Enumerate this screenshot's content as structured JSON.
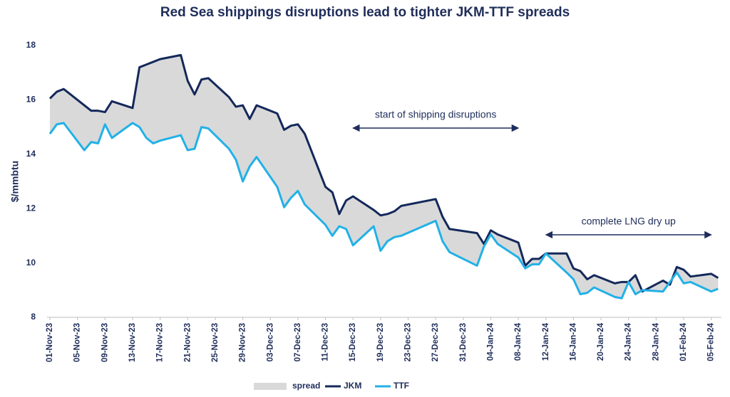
{
  "chart_data": {
    "type": "line",
    "title": "Red Sea shippings disruptions lead to tighter JKM-TTF spreads",
    "y_label": "$/mmbtu",
    "ylim": [
      8,
      18
    ],
    "yticks": [
      8,
      10,
      12,
      14,
      16,
      18
    ],
    "xlim": [
      "2023-11-01",
      "2024-02-07"
    ],
    "xticks": [
      {
        "value": "2023-11-01",
        "label": "01-Nov-23"
      },
      {
        "value": "2023-11-05",
        "label": "05-Nov-23"
      },
      {
        "value": "2023-11-09",
        "label": "09-Nov-23"
      },
      {
        "value": "2023-11-13",
        "label": "13-Nov-23"
      },
      {
        "value": "2023-11-17",
        "label": "17-Nov-23"
      },
      {
        "value": "2023-11-21",
        "label": "21-Nov-23"
      },
      {
        "value": "2023-11-25",
        "label": "25-Nov-23"
      },
      {
        "value": "2023-11-29",
        "label": "29-Nov-23"
      },
      {
        "value": "2023-12-03",
        "label": "03-Dec-23"
      },
      {
        "value": "2023-12-07",
        "label": "07-Dec-23"
      },
      {
        "value": "2023-12-11",
        "label": "11-Dec-23"
      },
      {
        "value": "2023-12-15",
        "label": "15-Dec-23"
      },
      {
        "value": "2023-12-19",
        "label": "19-Dec-23"
      },
      {
        "value": "2023-12-23",
        "label": "23-Dec-23"
      },
      {
        "value": "2023-12-27",
        "label": "27-Dec-23"
      },
      {
        "value": "2023-12-31",
        "label": "31-Dec-23"
      },
      {
        "value": "2024-01-04",
        "label": "04-Jan-24"
      },
      {
        "value": "2024-01-08",
        "label": "08-Jan-24"
      },
      {
        "value": "2024-01-12",
        "label": "12-Jan-24"
      },
      {
        "value": "2024-01-16",
        "label": "16-Jan-24"
      },
      {
        "value": "2024-01-20",
        "label": "20-Jan-24"
      },
      {
        "value": "2024-01-24",
        "label": "24-Jan-24"
      },
      {
        "value": "2024-01-28",
        "label": "28-Jan-24"
      },
      {
        "value": "2024-02-01",
        "label": "01-Feb-24"
      },
      {
        "value": "2024-02-05",
        "label": "05-Feb-24"
      }
    ],
    "x": [
      "2023-11-01",
      "2023-11-02",
      "2023-11-03",
      "2023-11-06",
      "2023-11-07",
      "2023-11-08",
      "2023-11-09",
      "2023-11-10",
      "2023-11-13",
      "2023-11-14",
      "2023-11-15",
      "2023-11-16",
      "2023-11-17",
      "2023-11-20",
      "2023-11-21",
      "2023-11-22",
      "2023-11-23",
      "2023-11-24",
      "2023-11-27",
      "2023-11-28",
      "2023-11-29",
      "2023-11-30",
      "2023-12-01",
      "2023-12-04",
      "2023-12-05",
      "2023-12-06",
      "2023-12-07",
      "2023-12-08",
      "2023-12-11",
      "2023-12-12",
      "2023-12-13",
      "2023-12-14",
      "2023-12-15",
      "2023-12-18",
      "2023-12-19",
      "2023-12-20",
      "2023-12-21",
      "2023-12-22",
      "2023-12-27",
      "2023-12-28",
      "2023-12-29",
      "2024-01-02",
      "2024-01-03",
      "2024-01-04",
      "2024-01-05",
      "2024-01-08",
      "2024-01-09",
      "2024-01-10",
      "2024-01-11",
      "2024-01-12",
      "2024-01-15",
      "2024-01-16",
      "2024-01-17",
      "2024-01-18",
      "2024-01-19",
      "2024-01-22",
      "2024-01-23",
      "2024-01-24",
      "2024-01-25",
      "2024-01-26",
      "2024-01-29",
      "2024-01-30",
      "2024-01-31",
      "2024-02-01",
      "2024-02-02",
      "2024-02-05",
      "2024-02-06"
    ],
    "spread": {
      "name": "spread",
      "color": "#d9d9d9"
    },
    "series": [
      {
        "name": "JKM",
        "color": "#14285a",
        "values": [
          16.05,
          16.3,
          16.4,
          15.8,
          15.6,
          15.6,
          15.55,
          15.95,
          15.7,
          17.2,
          17.3,
          17.4,
          17.5,
          17.65,
          16.7,
          16.2,
          16.75,
          16.8,
          16.1,
          15.75,
          15.8,
          15.3,
          15.8,
          15.5,
          14.9,
          15.05,
          15.1,
          14.75,
          12.8,
          12.6,
          11.8,
          12.3,
          12.45,
          11.95,
          11.75,
          11.8,
          11.9,
          12.1,
          12.35,
          11.7,
          11.25,
          11.1,
          10.7,
          11.2,
          11.05,
          10.75,
          9.9,
          10.15,
          10.15,
          10.35,
          10.35,
          9.8,
          9.7,
          9.4,
          9.55,
          9.25,
          9.3,
          9.3,
          9.55,
          8.95,
          9.35,
          9.2,
          9.85,
          9.75,
          9.5,
          9.6,
          9.45
        ]
      },
      {
        "name": "TTF",
        "color": "#22b1e6",
        "values": [
          14.75,
          15.1,
          15.15,
          14.15,
          14.45,
          14.4,
          15.1,
          14.6,
          15.15,
          15.0,
          14.6,
          14.4,
          14.5,
          14.7,
          14.15,
          14.2,
          15.0,
          14.95,
          14.2,
          13.8,
          13.0,
          13.55,
          13.9,
          12.8,
          12.05,
          12.4,
          12.65,
          12.15,
          11.4,
          11.0,
          11.35,
          11.25,
          10.65,
          11.35,
          10.45,
          10.8,
          10.95,
          11.0,
          11.55,
          10.8,
          10.4,
          9.9,
          10.6,
          11.05,
          10.7,
          10.2,
          9.8,
          9.95,
          9.95,
          10.35,
          9.65,
          9.4,
          8.85,
          8.9,
          9.1,
          8.75,
          8.7,
          9.3,
          8.85,
          9.0,
          8.95,
          9.3,
          9.65,
          9.25,
          9.3,
          8.95,
          9.05
        ]
      }
    ],
    "annotations": [
      {
        "text": "start of shipping disruptions",
        "x": [
          "2023-12-15",
          "2024-01-08"
        ]
      },
      {
        "text": "complete LNG dry up",
        "x": [
          "2024-01-12",
          "2024-02-05"
        ]
      }
    ]
  }
}
